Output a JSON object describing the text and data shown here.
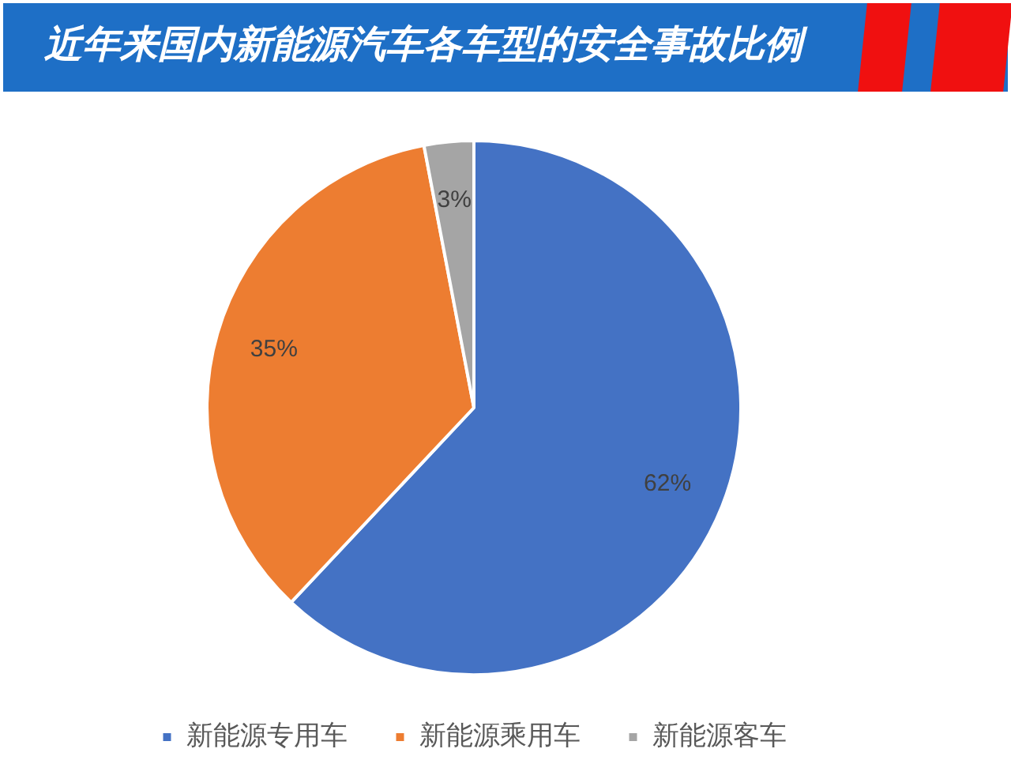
{
  "chart_data": {
    "type": "pie",
    "title": "近年来国内新能源汽车各车型的安全事故比例",
    "categories": [
      "新能源专用车",
      "新能源乘用车",
      "新能源客车"
    ],
    "values": [
      62,
      35,
      3
    ],
    "value_labels": [
      "62%",
      "35%",
      "3%"
    ],
    "colors": [
      "#4472c4",
      "#ed7d31",
      "#a5a5a5"
    ],
    "legend": "bottom"
  }
}
